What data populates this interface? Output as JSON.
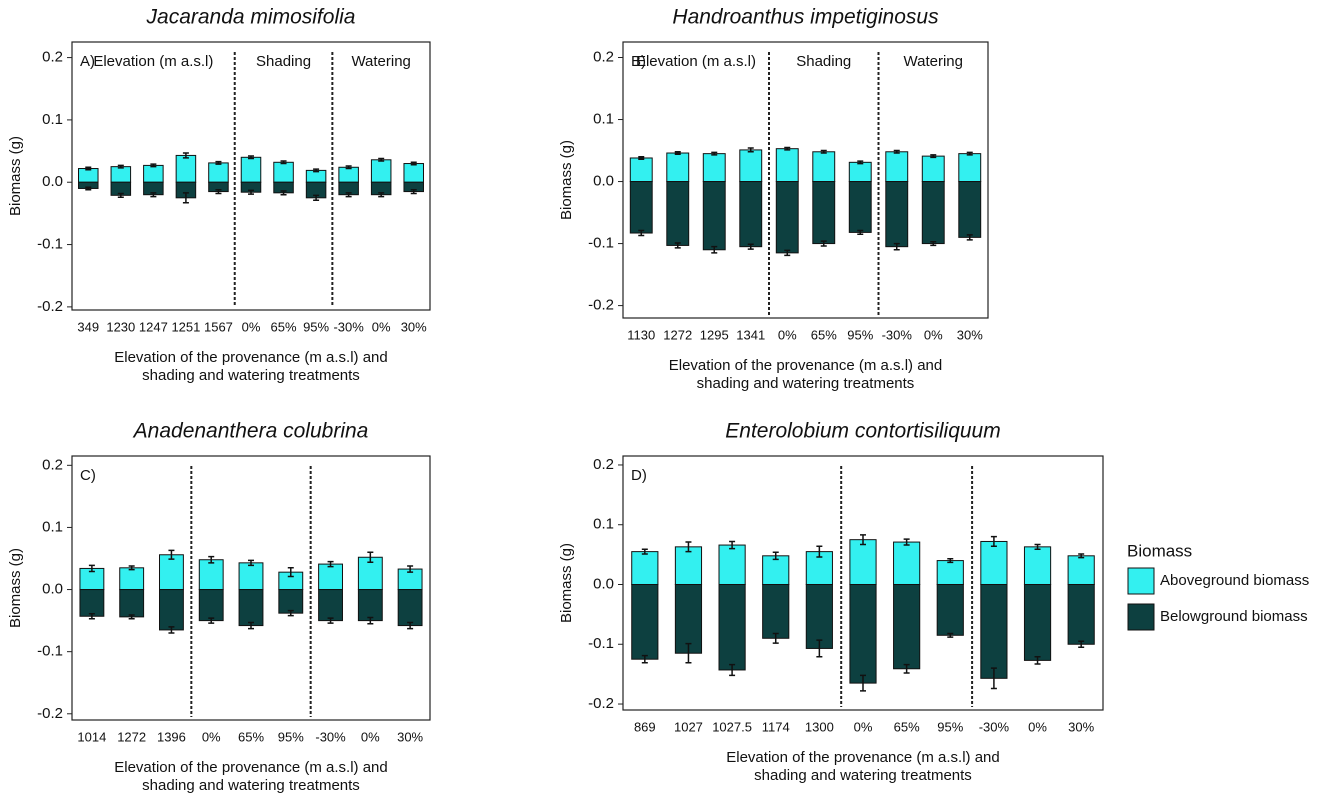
{
  "chart_data": [
    {
      "type": "bar",
      "title": "Jacaranda mimosifolia",
      "ylabel": "Biomass (g)",
      "xlabel": [
        "Elevation of the provenance (m a.s.l) and",
        "shading and watering treatments"
      ],
      "panel_label": "A)",
      "group_labels": [
        "Elevation (m a.s.l)",
        "Shading",
        "Watering"
      ],
      "categories": [
        "349",
        "1230",
        "1247",
        "1251",
        "1567",
        "0%",
        "65%",
        "95%",
        "-30%",
        "0%",
        "30%"
      ],
      "series": [
        {
          "name": "Aboveground biomass",
          "color": "#33f0f0",
          "values": [
            0.022,
            0.025,
            0.027,
            0.043,
            0.031,
            0.04,
            0.032,
            0.019,
            0.024,
            0.036,
            0.03
          ],
          "errors": [
            0.002,
            0.002,
            0.002,
            0.004,
            0.002,
            0.002,
            0.002,
            0.002,
            0.002,
            0.002,
            0.002
          ]
        },
        {
          "name": "Belowground biomass",
          "color": "#0d4040",
          "values": [
            -0.01,
            -0.021,
            -0.02,
            -0.025,
            -0.015,
            -0.016,
            -0.017,
            -0.025,
            -0.02,
            -0.02,
            -0.015
          ],
          "errors": [
            0.002,
            0.003,
            0.003,
            0.008,
            0.003,
            0.003,
            0.003,
            0.004,
            0.003,
            0.003,
            0.003
          ]
        }
      ],
      "ylim": [
        -0.205,
        0.225
      ],
      "yticks": [
        -0.2,
        -0.1,
        {
          "value": 0,
          "label": "0.0"
        },
        0.1,
        0.2
      ]
    },
    {
      "type": "bar",
      "title": "Handroanthus impetiginosus",
      "ylabel": "Biomass (g)",
      "xlabel": [
        "Elevation of the provenance (m a.s.l) and",
        "shading and watering treatments"
      ],
      "panel_label": "B)",
      "group_labels": [
        "Elevation (m a.s.l)",
        "Shading",
        "Watering"
      ],
      "categories": [
        "1130",
        "1272",
        "1295",
        "1341",
        "0%",
        "65%",
        "95%",
        "-30%",
        "0%",
        "30%"
      ],
      "series": [
        {
          "name": "Aboveground biomass",
          "color": "#33f0f0",
          "values": [
            0.038,
            0.046,
            0.045,
            0.051,
            0.053,
            0.048,
            0.031,
            0.048,
            0.041,
            0.045
          ],
          "errors": [
            0.002,
            0.002,
            0.002,
            0.003,
            0.002,
            0.002,
            0.002,
            0.002,
            0.002,
            0.002
          ]
        },
        {
          "name": "Belowground biomass",
          "color": "#0d4040",
          "values": [
            -0.083,
            -0.103,
            -0.11,
            -0.105,
            -0.115,
            -0.1,
            -0.082,
            -0.105,
            -0.1,
            -0.09
          ],
          "errors": [
            0.004,
            0.004,
            0.005,
            0.004,
            0.004,
            0.004,
            0.003,
            0.005,
            0.003,
            0.004
          ]
        }
      ],
      "ylim": [
        -0.22,
        0.225
      ],
      "yticks": [
        -0.2,
        -0.1,
        {
          "value": 0,
          "label": "0.0"
        },
        0.1,
        0.2
      ]
    },
    {
      "type": "bar",
      "title": "Anadenanthera colubrina",
      "ylabel": "Biomass (g)",
      "xlabel": [
        "Elevation of the provenance (m a.s.l) and",
        "shading and watering treatments"
      ],
      "panel_label": "C)",
      "categories": [
        "1014",
        "1272",
        "1396",
        "0%",
        "65%",
        "95%",
        "-30%",
        "0%",
        "30%"
      ],
      "series": [
        {
          "name": "Aboveground biomass",
          "color": "#33f0f0",
          "values": [
            0.034,
            0.035,
            0.056,
            0.048,
            0.043,
            0.028,
            0.041,
            0.052,
            0.033
          ],
          "errors": [
            0.005,
            0.003,
            0.007,
            0.005,
            0.004,
            0.007,
            0.004,
            0.008,
            0.005
          ]
        },
        {
          "name": "Belowground biomass",
          "color": "#0d4040",
          "values": [
            -0.043,
            -0.044,
            -0.065,
            -0.05,
            -0.058,
            -0.038,
            -0.05,
            -0.05,
            -0.058
          ],
          "errors": [
            0.004,
            0.003,
            0.005,
            0.004,
            0.005,
            0.004,
            0.004,
            0.005,
            0.005
          ]
        }
      ],
      "ylim": [
        -0.21,
        0.215
      ],
      "yticks": [
        -0.2,
        -0.1,
        {
          "value": 0,
          "label": "0.0"
        },
        0.1,
        0.2
      ]
    },
    {
      "type": "bar",
      "title": "Enterolobium contortisiliquum",
      "ylabel": "Biomass (g)",
      "xlabel": [
        "Elevation of the provenance (m a.s.l) and",
        "shading and watering treatments"
      ],
      "panel_label": "D)",
      "legend_title": "Biomass",
      "legend": "right",
      "categories": [
        "869",
        "1027",
        "1027.5",
        "1174",
        "1300",
        "0%",
        "65%",
        "95%",
        "-30%",
        "0%",
        "30%"
      ],
      "series": [
        {
          "name": "Aboveground biomass",
          "color": "#33f0f0",
          "values": [
            0.055,
            0.063,
            0.066,
            0.048,
            0.055,
            0.075,
            0.071,
            0.04,
            0.072,
            0.063,
            0.048
          ],
          "errors": [
            0.004,
            0.008,
            0.006,
            0.006,
            0.009,
            0.008,
            0.005,
            0.003,
            0.008,
            0.004,
            0.003
          ]
        },
        {
          "name": "Belowground biomass",
          "color": "#0d4040",
          "values": [
            -0.125,
            -0.115,
            -0.143,
            -0.09,
            -0.107,
            -0.165,
            -0.141,
            -0.085,
            -0.157,
            -0.127,
            -0.1
          ],
          "errors": [
            0.006,
            0.016,
            0.009,
            0.008,
            0.014,
            0.013,
            0.007,
            0.003,
            0.017,
            0.006,
            0.005
          ]
        }
      ],
      "ylim": [
        -0.21,
        0.215
      ],
      "yticks": [
        -0.2,
        -0.1,
        {
          "value": 0,
          "label": "0.0"
        },
        0.1,
        0.2
      ]
    }
  ]
}
